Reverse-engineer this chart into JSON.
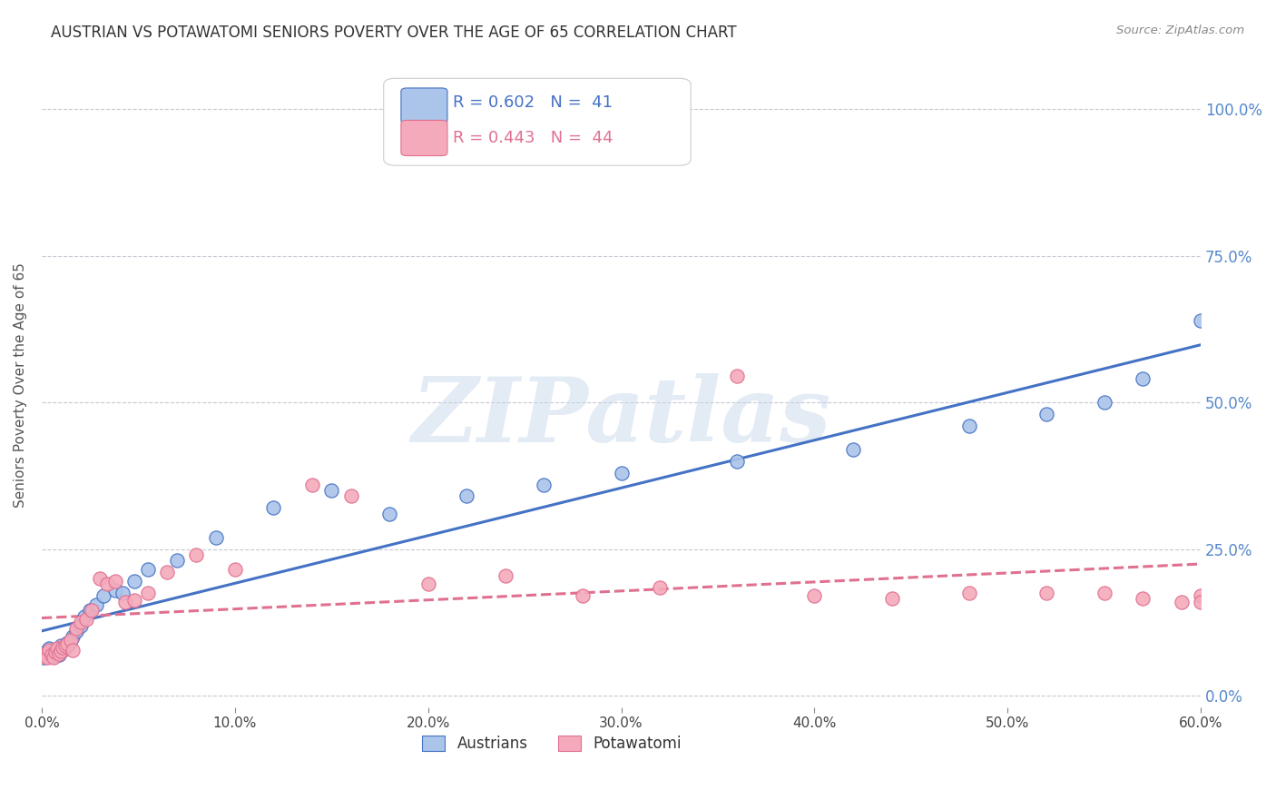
{
  "title": "AUSTRIAN VS POTAWATOMI SENIORS POVERTY OVER THE AGE OF 65 CORRELATION CHART",
  "source": "Source: ZipAtlas.com",
  "ylabel": "Seniors Poverty Over the Age of 65",
  "xlim": [
    0.0,
    0.6
  ],
  "ylim": [
    -0.02,
    1.08
  ],
  "austrians_R": 0.602,
  "austrians_N": 41,
  "potawatomi_R": 0.443,
  "potawatomi_N": 44,
  "austrians_color": "#aac4ea",
  "potawatomi_color": "#f4aabb",
  "trendline_austrians_color": "#4472c4",
  "trendline_potawatomi_color": "#e07090",
  "background_color": "#ffffff",
  "grid_color": "#c8c8d4",
  "watermark_color": "#c8d8ec",
  "ytick_color": "#5588cc",
  "austrians_x": [
    0.001,
    0.002,
    0.003,
    0.004,
    0.005,
    0.006,
    0.007,
    0.008,
    0.009,
    0.01,
    0.011,
    0.012,
    0.013,
    0.014,
    0.015,
    0.016,
    0.018,
    0.02,
    0.022,
    0.025,
    0.028,
    0.032,
    0.038,
    0.042,
    0.048,
    0.055,
    0.07,
    0.09,
    0.12,
    0.15,
    0.18,
    0.22,
    0.26,
    0.3,
    0.36,
    0.42,
    0.48,
    0.52,
    0.55,
    0.57,
    0.6
  ],
  "austrians_y": [
    0.065,
    0.075,
    0.07,
    0.08,
    0.075,
    0.068,
    0.072,
    0.078,
    0.07,
    0.085,
    0.078,
    0.082,
    0.09,
    0.088,
    0.095,
    0.1,
    0.11,
    0.12,
    0.135,
    0.145,
    0.155,
    0.17,
    0.18,
    0.175,
    0.195,
    0.215,
    0.23,
    0.27,
    0.32,
    0.35,
    0.31,
    0.34,
    0.36,
    0.38,
    0.4,
    0.42,
    0.46,
    0.48,
    0.5,
    0.54,
    0.64
  ],
  "potawatomi_x": [
    0.001,
    0.002,
    0.003,
    0.004,
    0.005,
    0.006,
    0.007,
    0.008,
    0.009,
    0.01,
    0.011,
    0.012,
    0.013,
    0.015,
    0.016,
    0.018,
    0.02,
    0.023,
    0.026,
    0.03,
    0.034,
    0.038,
    0.043,
    0.048,
    0.055,
    0.065,
    0.08,
    0.1,
    0.14,
    0.16,
    0.2,
    0.24,
    0.28,
    0.32,
    0.36,
    0.4,
    0.44,
    0.48,
    0.52,
    0.55,
    0.57,
    0.59,
    0.6,
    0.6
  ],
  "potawatomi_y": [
    0.068,
    0.072,
    0.065,
    0.078,
    0.07,
    0.065,
    0.075,
    0.08,
    0.072,
    0.076,
    0.082,
    0.085,
    0.088,
    0.095,
    0.078,
    0.115,
    0.125,
    0.13,
    0.145,
    0.2,
    0.19,
    0.195,
    0.16,
    0.162,
    0.175,
    0.21,
    0.24,
    0.215,
    0.36,
    0.34,
    0.19,
    0.205,
    0.17,
    0.185,
    0.545,
    0.17,
    0.165,
    0.175,
    0.175,
    0.175,
    0.165,
    0.16,
    0.17,
    0.16
  ],
  "legend_label_austrians": "Austrians",
  "legend_label_potawatomi": "Potawatomi",
  "watermark": "ZIPatlas"
}
